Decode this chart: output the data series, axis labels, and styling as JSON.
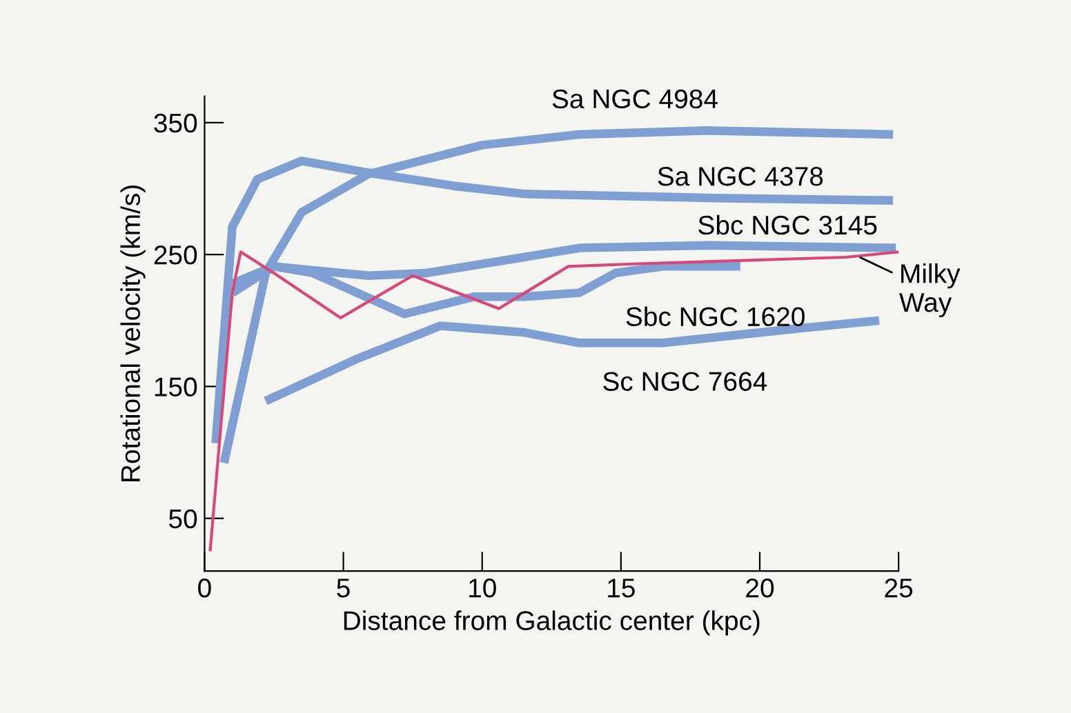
{
  "chart_data": {
    "type": "line",
    "xlabel": "Distance from Galactic center (kpc)",
    "ylabel": "Rotational velocity (km/s)",
    "xlim": [
      0,
      25
    ],
    "ylim": [
      10,
      370
    ],
    "xticks": [
      0,
      5,
      10,
      15,
      20,
      25
    ],
    "yticks": [
      50,
      150,
      250,
      350
    ],
    "grid": false,
    "marker": "none",
    "line_style": "solid",
    "series": [
      {
        "color": "#7f9fd2",
        "x": [
          0.7,
          2.2,
          3.5,
          5.9,
          10,
          13.5,
          18,
          24.8
        ],
        "values": [
          92,
          236,
          282,
          311,
          333,
          341,
          344,
          341
        ]
      },
      {
        "color": "#7f9fd2",
        "x": [
          0.4,
          1.0,
          1.9,
          3.5,
          5.9,
          9,
          11.5,
          13.5,
          18,
          24.8
        ],
        "values": [
          107,
          271,
          307,
          321,
          312,
          302,
          296,
          295,
          293,
          291
        ]
      },
      {
        "color": "#7f9fd2",
        "x": [
          1.0,
          2.5,
          5.9,
          8,
          11.5,
          13.5,
          18.1,
          24.9
        ],
        "values": [
          228,
          241,
          234,
          236,
          248,
          255,
          257,
          255
        ]
      },
      {
        "color": "#7f9fd2",
        "x": [
          1.0,
          2.5,
          3.9,
          7.2,
          9.7,
          11.5,
          13.5,
          14.8,
          16.5,
          19.3
        ],
        "values": [
          221,
          241,
          236,
          205,
          218,
          218,
          221,
          236,
          241,
          241
        ]
      },
      {
        "color": "#7f9fd2",
        "x": [
          2.2,
          5.5,
          8.5,
          11.5,
          13.5,
          16.5,
          21.4,
          24.3
        ],
        "values": [
          139,
          171,
          196,
          191,
          183,
          183,
          194,
          200
        ]
      },
      {
        "color": "#d9467a",
        "x": [
          0.2,
          1.0,
          1.3,
          2.5,
          4.9,
          7.5,
          10.6,
          13.1,
          15.6,
          23.1,
          25
        ],
        "values": [
          25,
          221,
          252,
          236,
          202,
          234,
          209,
          241,
          243,
          248,
          252
        ]
      }
    ],
    "annotations": [
      {
        "text": "Sa NGC 4984",
        "x": 15.5,
        "y": 343
      },
      {
        "text": "Sa NGC 4378",
        "x": 19.3,
        "y": 293
      },
      {
        "text": "Sbc NGC 3145",
        "x": 21,
        "y": 256
      },
      {
        "text": "Milky\nWay",
        "x": 23.5,
        "y": 249
      },
      {
        "text": "Sbc NGC 1620",
        "x": 18.4,
        "y": 236
      },
      {
        "text": "Sc NGC 7664",
        "x": 17.3,
        "y": 184
      }
    ]
  }
}
